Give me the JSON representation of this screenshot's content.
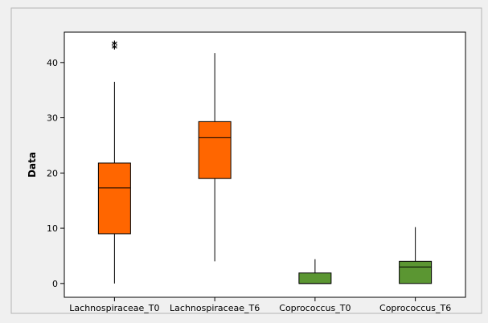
{
  "chart_data": {
    "type": "box",
    "title": "",
    "xlabel": "",
    "ylabel": "Data",
    "ylim": [
      -2.5,
      45.5
    ],
    "yticks": [
      0,
      10,
      20,
      30,
      40
    ],
    "grid": false,
    "legend": "none",
    "colors": {
      "frame_background": "#f0f0f0",
      "plot_background": "#ffffff",
      "lachnospiraceae": "#ff6600",
      "coprococcus": "#5b9632",
      "stroke": "#000000"
    },
    "series": [
      {
        "name": "Lachnospiraceae_T0",
        "color": "#ff6600",
        "min": 0,
        "q1": 9,
        "median": 17.3,
        "q3": 21.8,
        "max": 36.5,
        "outliers": [
          42.5,
          43.2
        ]
      },
      {
        "name": "Lachnospiraceae_T6",
        "color": "#ff6600",
        "min": 4,
        "q1": 19,
        "median": 26.4,
        "q3": 29.3,
        "max": 41.7,
        "outliers": []
      },
      {
        "name": "Coprococcus_T0",
        "color": "#5b9632",
        "min": 0,
        "q1": 0,
        "median": 0,
        "q3": 1.9,
        "max": 4.4,
        "outliers": []
      },
      {
        "name": "Coprococcus_T6",
        "color": "#5b9632",
        "min": 0,
        "q1": 0,
        "median": 3,
        "q3": 4,
        "max": 10.2,
        "outliers": []
      }
    ]
  }
}
